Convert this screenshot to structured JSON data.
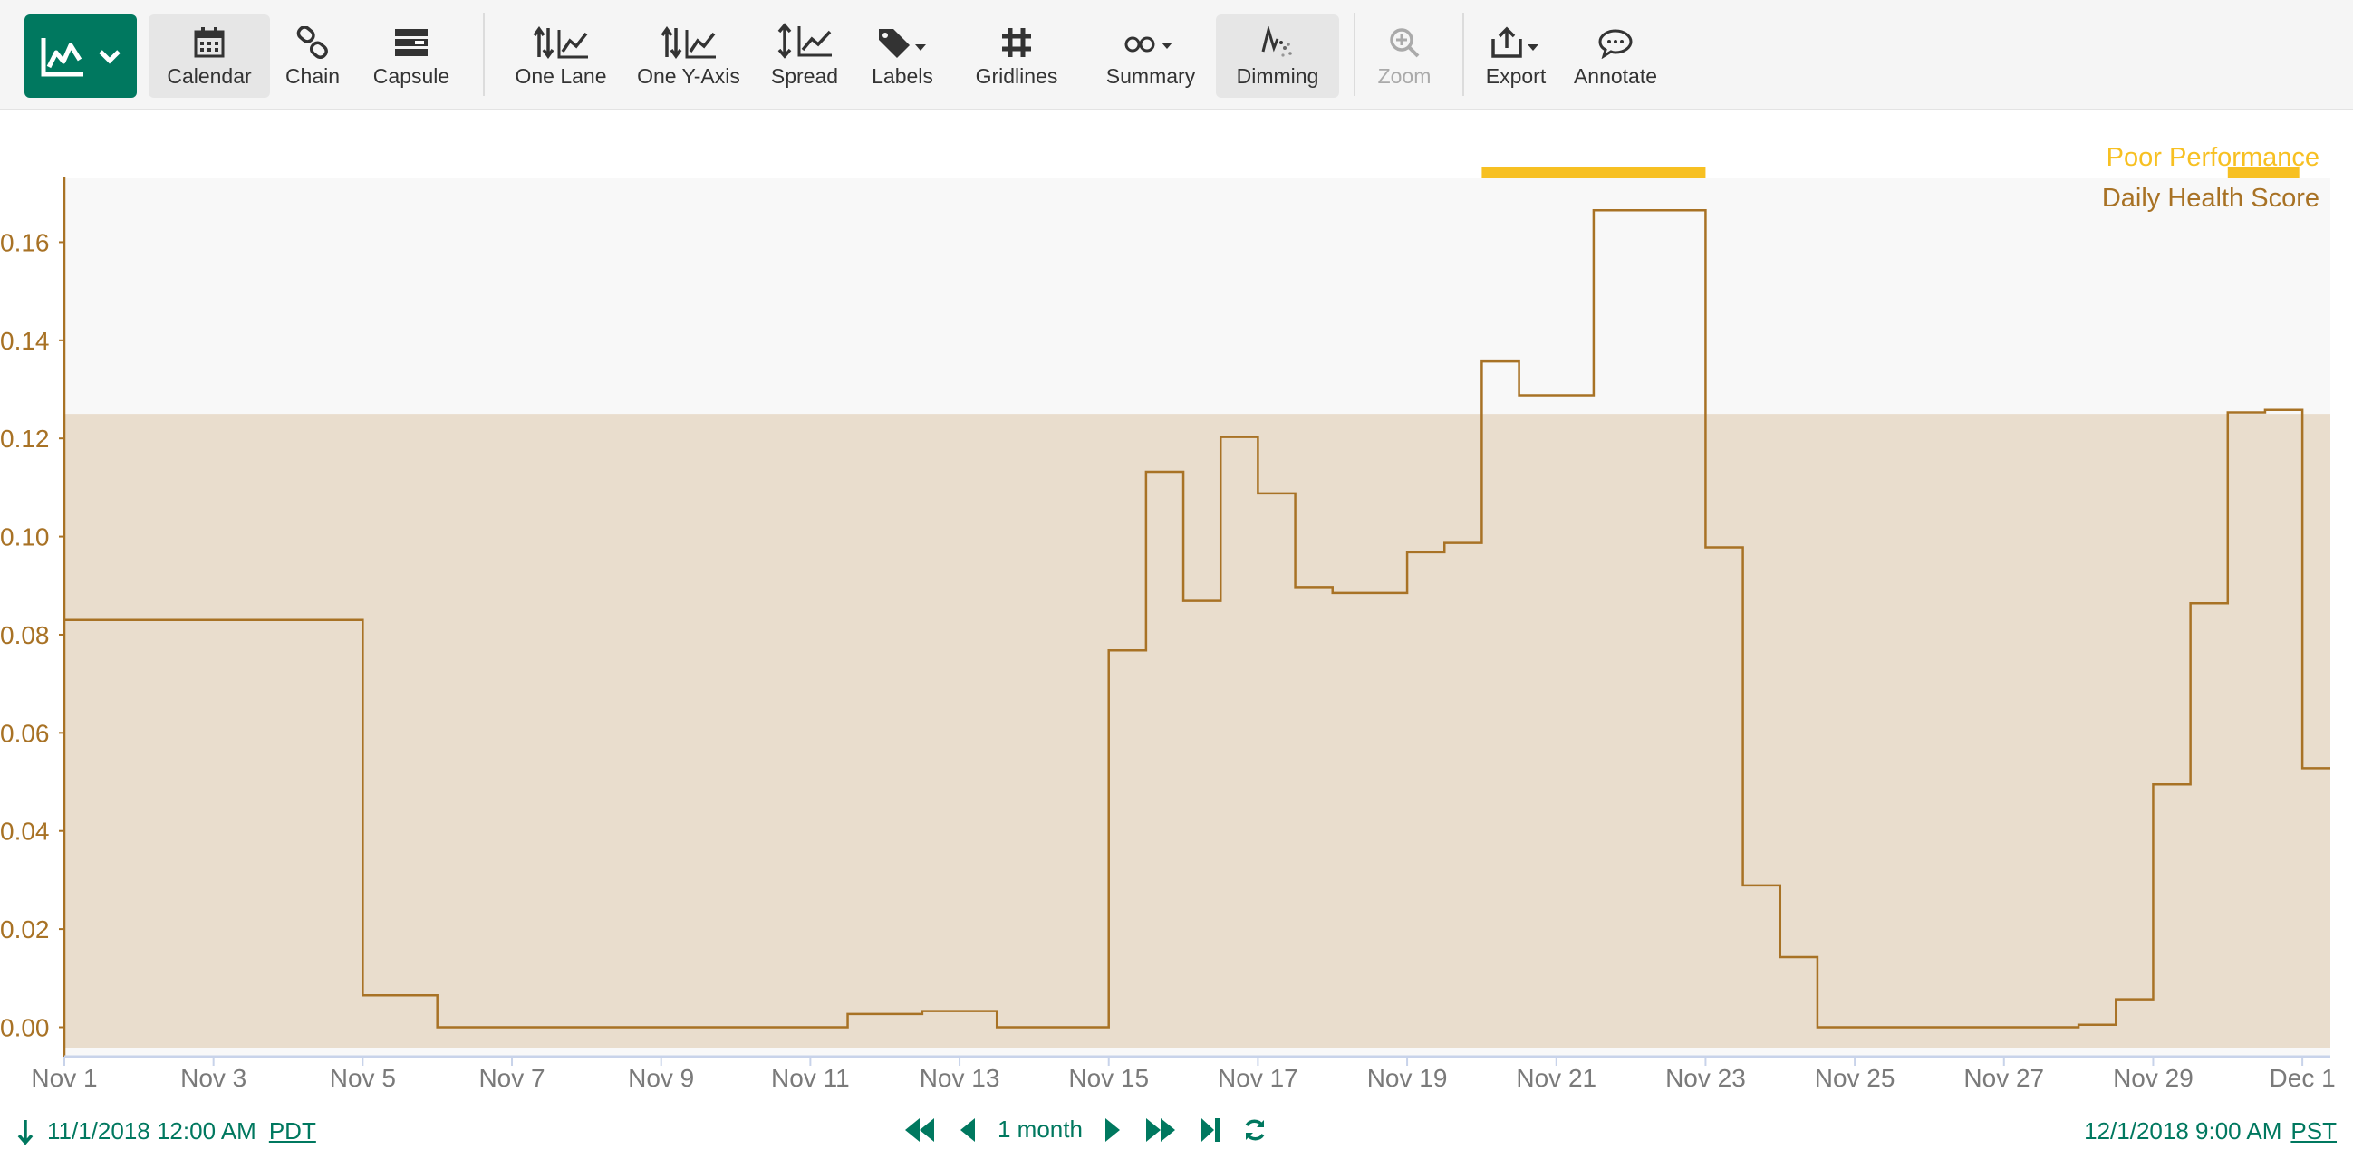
{
  "toolbar": {
    "items": [
      {
        "label": "Calendar",
        "icon": "calendar-icon"
      },
      {
        "label": "Chain",
        "icon": "chain-link-icon"
      },
      {
        "label": "Capsule",
        "icon": "capsule-icon"
      },
      {
        "label": "One Lane",
        "icon": "one-lane-icon"
      },
      {
        "label": "One Y-Axis",
        "icon": "one-y-axis-icon"
      },
      {
        "label": "Spread",
        "icon": "spread-icon"
      },
      {
        "label": "Labels",
        "icon": "tag-icon"
      },
      {
        "label": "Gridlines",
        "icon": "grid-icon"
      },
      {
        "label": "Summary",
        "icon": "binoculars-icon"
      },
      {
        "label": "Dimming",
        "icon": "dimming-icon"
      },
      {
        "label": "Zoom",
        "icon": "zoom-in-icon"
      },
      {
        "label": "Export",
        "icon": "export-icon"
      },
      {
        "label": "Annotate",
        "icon": "comment-icon"
      }
    ],
    "app_icon": "line-chart-icon",
    "accent_color": "#00785f"
  },
  "chart_data": {
    "type": "line",
    "step": true,
    "x_axis": {
      "range": [
        "2018-11-01T00:00",
        "2018-12-01T09:00"
      ],
      "tick_labels": [
        "Nov 1",
        "Nov 3",
        "Nov 5",
        "Nov 7",
        "Nov 9",
        "Nov 11",
        "Nov 13",
        "Nov 15",
        "Nov 17",
        "Nov 19",
        "Nov 21",
        "Nov 23",
        "Nov 25",
        "Nov 27",
        "Nov 29",
        "Dec 1"
      ],
      "tick_dates": [
        "2018-11-01",
        "2018-11-03",
        "2018-11-05",
        "2018-11-07",
        "2018-11-09",
        "2018-11-11",
        "2018-11-13",
        "2018-11-15",
        "2018-11-17",
        "2018-11-19",
        "2018-11-21",
        "2018-11-23",
        "2018-11-25",
        "2018-11-27",
        "2018-11-29",
        "2018-12-01"
      ]
    },
    "y_axis": {
      "range": [
        -0.006,
        0.173
      ],
      "tick_labels": [
        "0.00",
        "0.02",
        "0.04",
        "0.06",
        "0.08",
        "0.10",
        "0.12",
        "0.14",
        "0.16"
      ],
      "tick_values": [
        0,
        0.02,
        0.04,
        0.06,
        0.08,
        0.1,
        0.12,
        0.14,
        0.16
      ]
    },
    "threshold": {
      "value": 0.125,
      "fill": "#e9ddcd"
    },
    "series": [
      {
        "name": "Daily Health Score",
        "color": "#a87225",
        "points": [
          {
            "x": "2018-11-01T00:00",
            "y": 0.083
          },
          {
            "x": "2018-11-05T00:00",
            "y": 0.0065
          },
          {
            "x": "2018-11-06T00:00",
            "y": 0.0
          },
          {
            "x": "2018-11-11T12:00",
            "y": 0.0027
          },
          {
            "x": "2018-11-12T12:00",
            "y": 0.0033
          },
          {
            "x": "2018-11-13T12:00",
            "y": 0.0
          },
          {
            "x": "2018-11-15T00:00",
            "y": 0.0768
          },
          {
            "x": "2018-11-15T12:00",
            "y": 0.1132
          },
          {
            "x": "2018-11-16T00:00",
            "y": 0.0869
          },
          {
            "x": "2018-11-16T12:00",
            "y": 0.1203
          },
          {
            "x": "2018-11-17T00:00",
            "y": 0.1088
          },
          {
            "x": "2018-11-17T12:00",
            "y": 0.0897
          },
          {
            "x": "2018-11-18T00:00",
            "y": 0.0885
          },
          {
            "x": "2018-11-19T00:00",
            "y": 0.0968
          },
          {
            "x": "2018-11-19T12:00",
            "y": 0.0987
          },
          {
            "x": "2018-11-20T00:00",
            "y": 0.1357
          },
          {
            "x": "2018-11-20T12:00",
            "y": 0.1288
          },
          {
            "x": "2018-11-21T12:00",
            "y": 0.1665
          },
          {
            "x": "2018-11-23T00:00",
            "y": 0.0978
          },
          {
            "x": "2018-11-23T12:00",
            "y": 0.0289
          },
          {
            "x": "2018-11-24T00:00",
            "y": 0.0143
          },
          {
            "x": "2018-11-24T12:00",
            "y": 0.0
          },
          {
            "x": "2018-11-28T00:00",
            "y": 0.0005
          },
          {
            "x": "2018-11-28T12:00",
            "y": 0.0057
          },
          {
            "x": "2018-11-29T00:00",
            "y": 0.0495
          },
          {
            "x": "2018-11-29T12:00",
            "y": 0.0864
          },
          {
            "x": "2018-11-30T00:00",
            "y": 0.1253
          },
          {
            "x": "2018-11-30T12:00",
            "y": 0.1258
          },
          {
            "x": "2018-12-01T00:00",
            "y": 0.0528
          },
          {
            "x": "2018-12-01T09:00",
            "y": 0.0528
          }
        ]
      },
      {
        "name": "Poor Performance",
        "color": "#f7c022",
        "type": "capsule",
        "intervals": [
          {
            "start": "2018-11-20T00:00",
            "end": "2018-11-23T00:00"
          },
          {
            "start": "2018-11-30T00:00",
            "end": "2018-11-30T23:00"
          }
        ]
      }
    ],
    "legend_placement": "top-right"
  },
  "footer": {
    "start_date": "11/1/2018 12:00 AM",
    "start_tz": "PDT",
    "end_date": "12/1/2018 9:00 AM",
    "end_tz": "PST",
    "range_label": "1 month"
  }
}
